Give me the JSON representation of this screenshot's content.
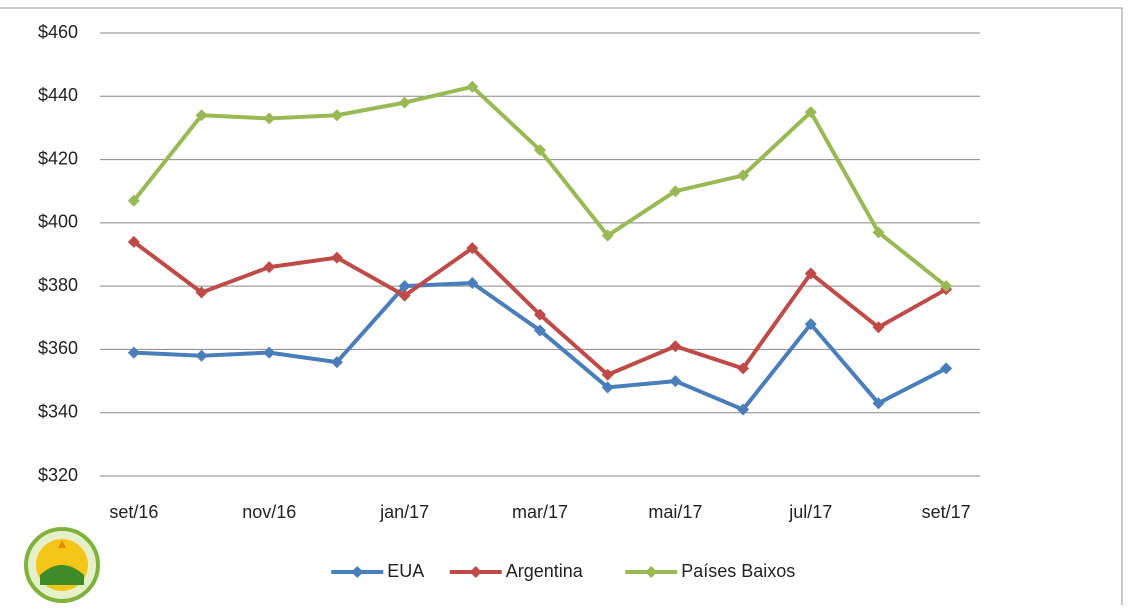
{
  "chart_data": {
    "type": "line",
    "categories": [
      "set/16",
      null,
      "nov/16",
      null,
      "jan/17",
      null,
      "mar/17",
      null,
      "mai/17",
      null,
      "jul/17",
      null,
      "set/17"
    ],
    "series": [
      {
        "name": "EUA",
        "color": "#4a7ebb",
        "values": [
          359,
          358,
          359,
          356,
          380,
          381,
          366,
          348,
          350,
          341,
          368,
          343,
          354
        ]
      },
      {
        "name": "Argentina",
        "color": "#be4b48",
        "values": [
          394,
          378,
          386,
          389,
          377,
          392,
          371,
          352,
          361,
          354,
          384,
          367,
          379
        ]
      },
      {
        "name": "Países Baixos",
        "color": "#98b954",
        "values": [
          407,
          434,
          433,
          434,
          438,
          443,
          423,
          396,
          410,
          415,
          435,
          397,
          380
        ]
      }
    ],
    "ylim": [
      320,
      460
    ],
    "yticks": [
      {
        "value": 320,
        "label": "$320"
      },
      {
        "value": 340,
        "label": "$340"
      },
      {
        "value": 360,
        "label": "$360"
      },
      {
        "value": 380,
        "label": "$380"
      },
      {
        "value": 400,
        "label": "$400"
      },
      {
        "value": 420,
        "label": "$420"
      },
      {
        "value": 440,
        "label": "$440"
      },
      {
        "value": 460,
        "label": "$460"
      }
    ],
    "grid": true,
    "legend": "bottom"
  }
}
